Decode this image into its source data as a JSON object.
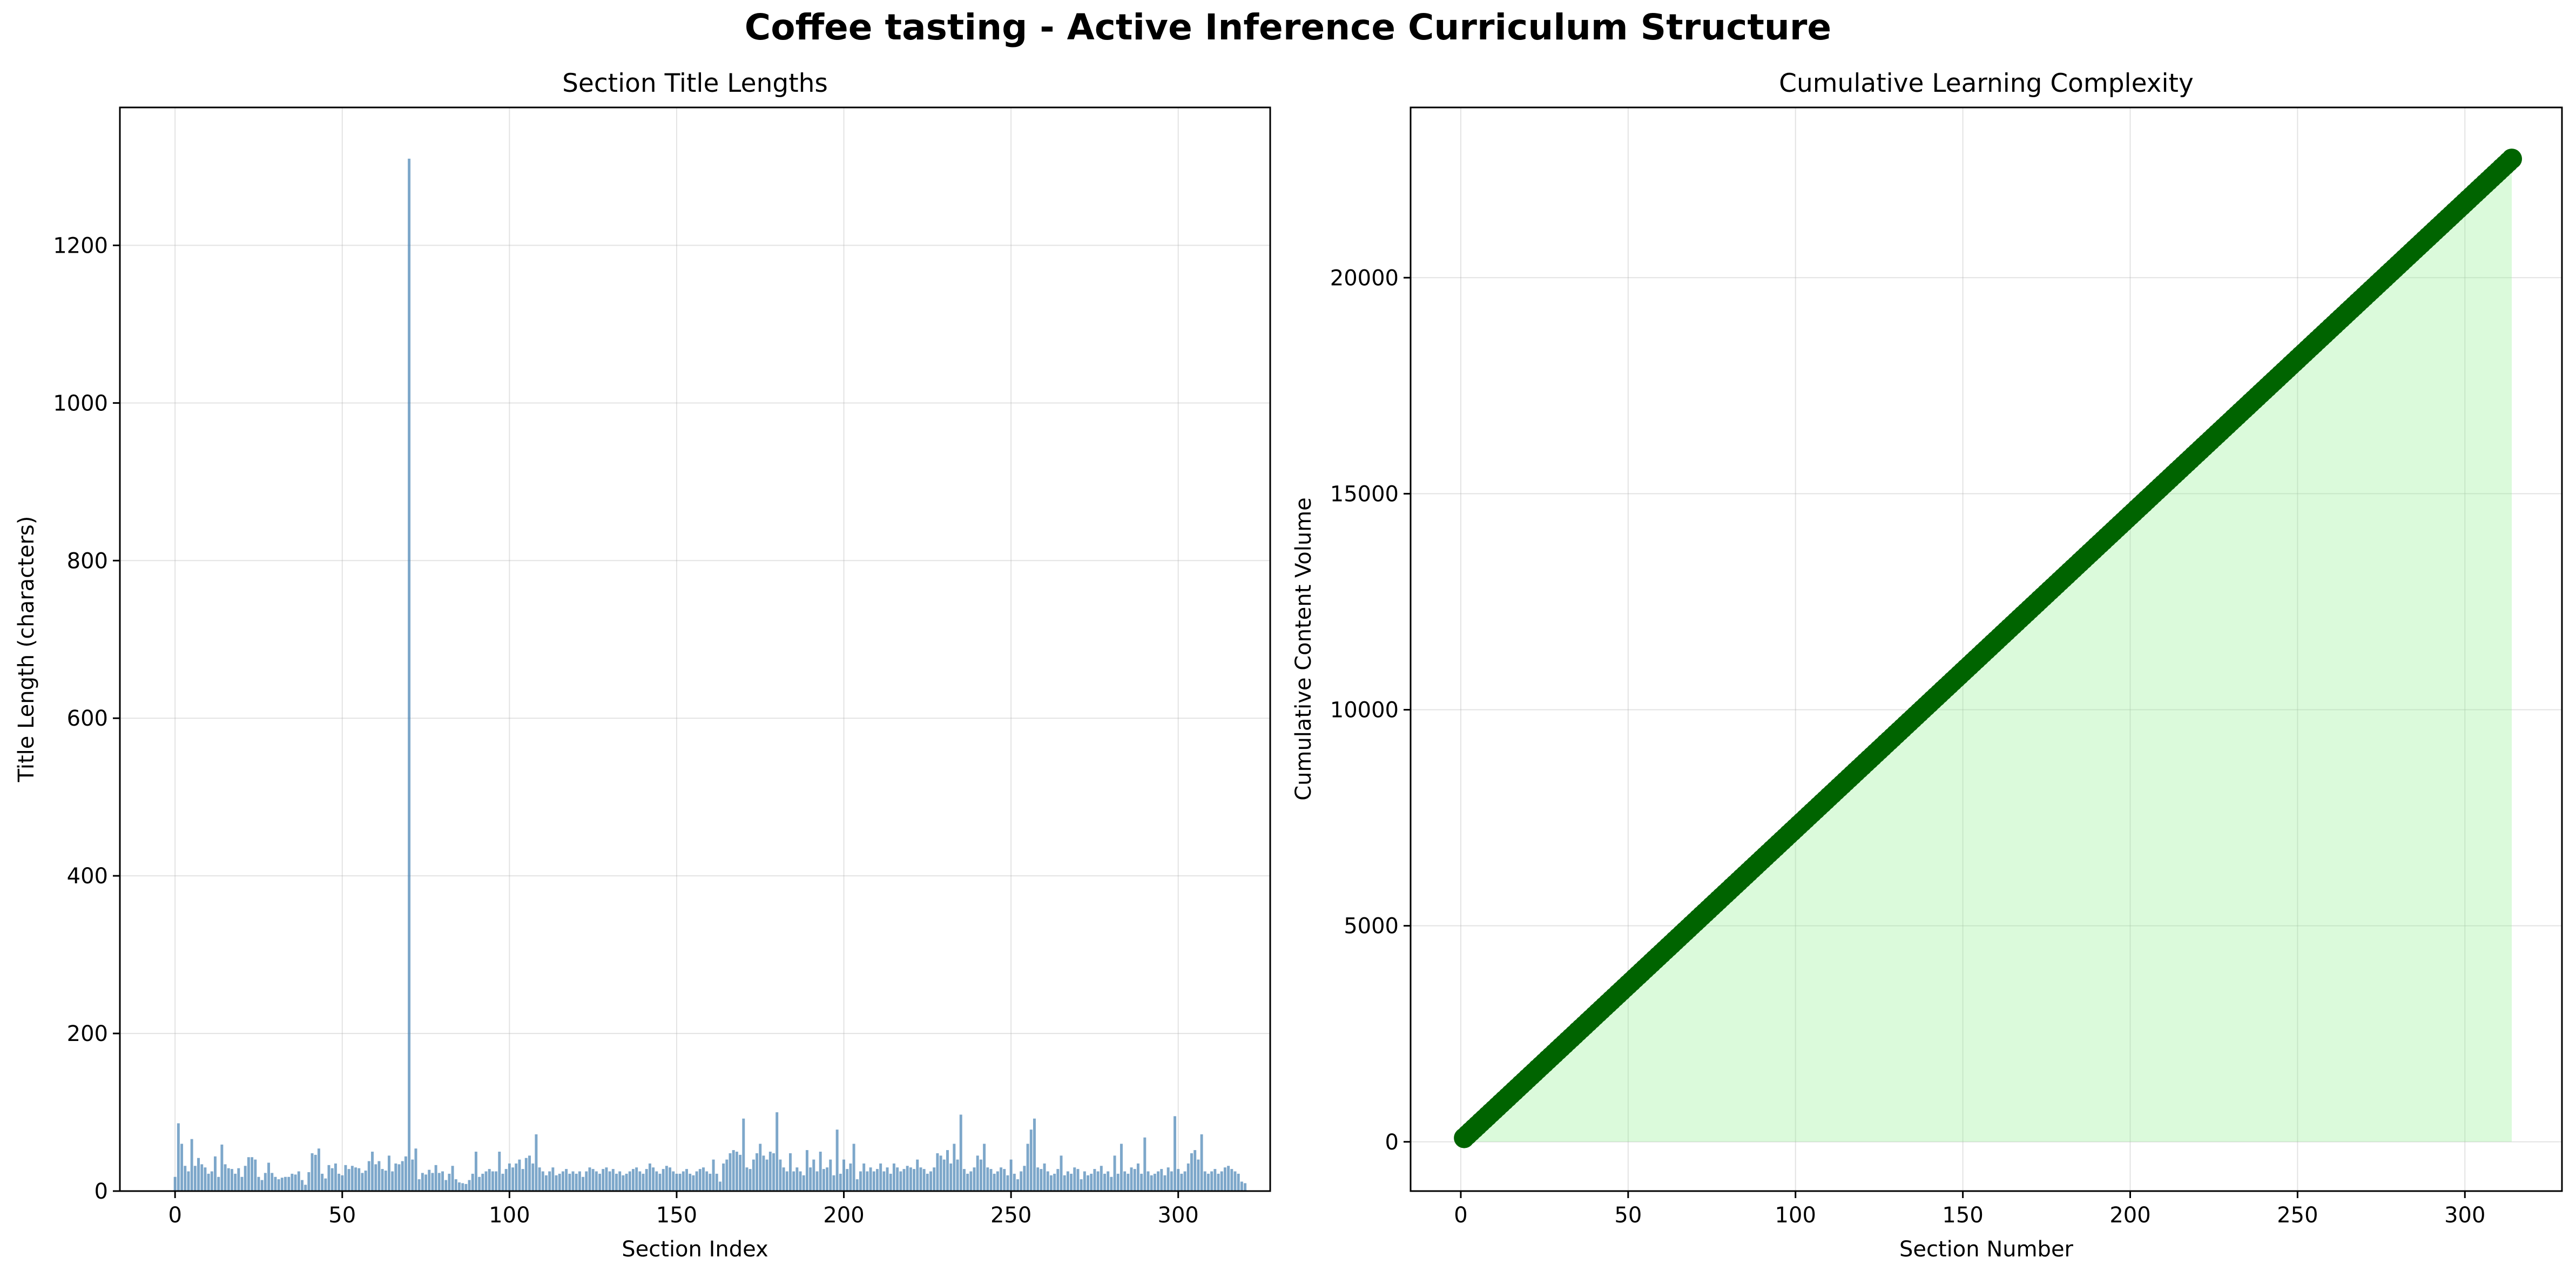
{
  "figure": {
    "title": "Coffee tasting - Active Inference Curriculum Structure"
  },
  "colors": {
    "bars": "#4682B4",
    "line": "#006400",
    "fill": "#90EE90",
    "grid": "#b0b0b0",
    "axis": "#000000"
  },
  "chart_data": [
    {
      "type": "bar",
      "title": "Section Title Lengths",
      "xlabel": "Section Index",
      "ylabel": "Title Length (characters)",
      "xlim": [
        -16.5,
        327.5
      ],
      "ylim": [
        0,
        1375
      ],
      "xticks": [
        0,
        50,
        100,
        150,
        200,
        250,
        300
      ],
      "yticks": [
        0,
        200,
        400,
        600,
        800,
        1000,
        1200
      ],
      "grid": true,
      "x_start": 0,
      "values": [
        18,
        86,
        60,
        32,
        25,
        66,
        32,
        42,
        34,
        30,
        22,
        25,
        44,
        18,
        59,
        34,
        29,
        28,
        22,
        29,
        18,
        32,
        43,
        43,
        40,
        18,
        14,
        23,
        36,
        23,
        18,
        15,
        17,
        18,
        18,
        22,
        21,
        25,
        14,
        8,
        24,
        48,
        46,
        54,
        22,
        16,
        33,
        29,
        35,
        22,
        20,
        33,
        28,
        32,
        30,
        29,
        23,
        26,
        38,
        50,
        34,
        38,
        28,
        26,
        45,
        25,
        35,
        34,
        38,
        44,
        1310,
        40,
        54,
        15,
        23,
        21,
        27,
        23,
        33,
        23,
        25,
        14,
        22,
        32,
        15,
        11,
        10,
        9,
        14,
        22,
        50,
        18,
        22,
        25,
        28,
        25,
        25,
        50,
        22,
        28,
        35,
        30,
        35,
        40,
        28,
        42,
        45,
        35,
        72,
        30,
        25,
        20,
        25,
        30,
        20,
        22,
        25,
        28,
        22,
        25,
        22,
        25,
        18,
        25,
        30,
        28,
        25,
        22,
        28,
        30,
        25,
        28,
        22,
        25,
        20,
        22,
        25,
        28,
        30,
        25,
        22,
        28,
        35,
        30,
        25,
        22,
        28,
        32,
        30,
        25,
        22,
        22,
        25,
        28,
        22,
        20,
        25,
        28,
        30,
        25,
        22,
        40,
        22,
        12,
        35,
        40,
        48,
        52,
        50,
        46,
        92,
        30,
        28,
        40,
        48,
        60,
        45,
        40,
        50,
        48,
        100,
        40,
        30,
        25,
        48,
        25,
        30,
        25,
        20,
        52,
        30,
        40,
        25,
        50,
        28,
        30,
        40,
        20,
        78,
        22,
        40,
        28,
        35,
        60,
        15,
        25,
        35,
        25,
        30,
        25,
        28,
        35,
        25,
        30,
        22,
        35,
        30,
        25,
        28,
        32,
        30,
        28,
        40,
        30,
        28,
        22,
        25,
        30,
        48,
        45,
        40,
        52,
        35,
        60,
        40,
        97,
        28,
        22,
        25,
        30,
        45,
        40,
        60,
        30,
        28,
        22,
        25,
        30,
        28,
        20,
        40,
        22,
        15,
        25,
        32,
        60,
        78,
        92,
        30,
        28,
        35,
        25,
        20,
        22,
        28,
        45,
        20,
        25,
        22,
        30,
        28,
        15,
        25,
        20,
        22,
        28,
        25,
        32,
        22,
        25,
        18,
        45,
        22,
        60,
        25,
        22,
        30,
        28,
        35,
        22,
        68,
        25,
        20,
        22,
        25,
        28,
        20,
        30,
        25,
        95,
        28,
        22,
        25,
        35,
        48,
        52,
        40,
        72,
        25,
        22,
        25,
        28,
        22,
        25,
        30,
        32,
        28,
        25,
        22,
        12,
        10
      ]
    },
    {
      "type": "line",
      "title": "Cumulative Learning Complexity",
      "xlabel": "Section Number",
      "ylabel": "Cumulative Content Volume",
      "xlim": [
        -15,
        329
      ],
      "ylim": [
        -1140,
        23940
      ],
      "xticks": [
        0,
        50,
        100,
        150,
        200,
        250,
        300
      ],
      "yticks": [
        0,
        5000,
        10000,
        15000,
        20000
      ],
      "grid": true,
      "area_fill": true,
      "x_range": [
        1,
        314
      ],
      "y_start": 90,
      "y_end": 22750
    }
  ]
}
